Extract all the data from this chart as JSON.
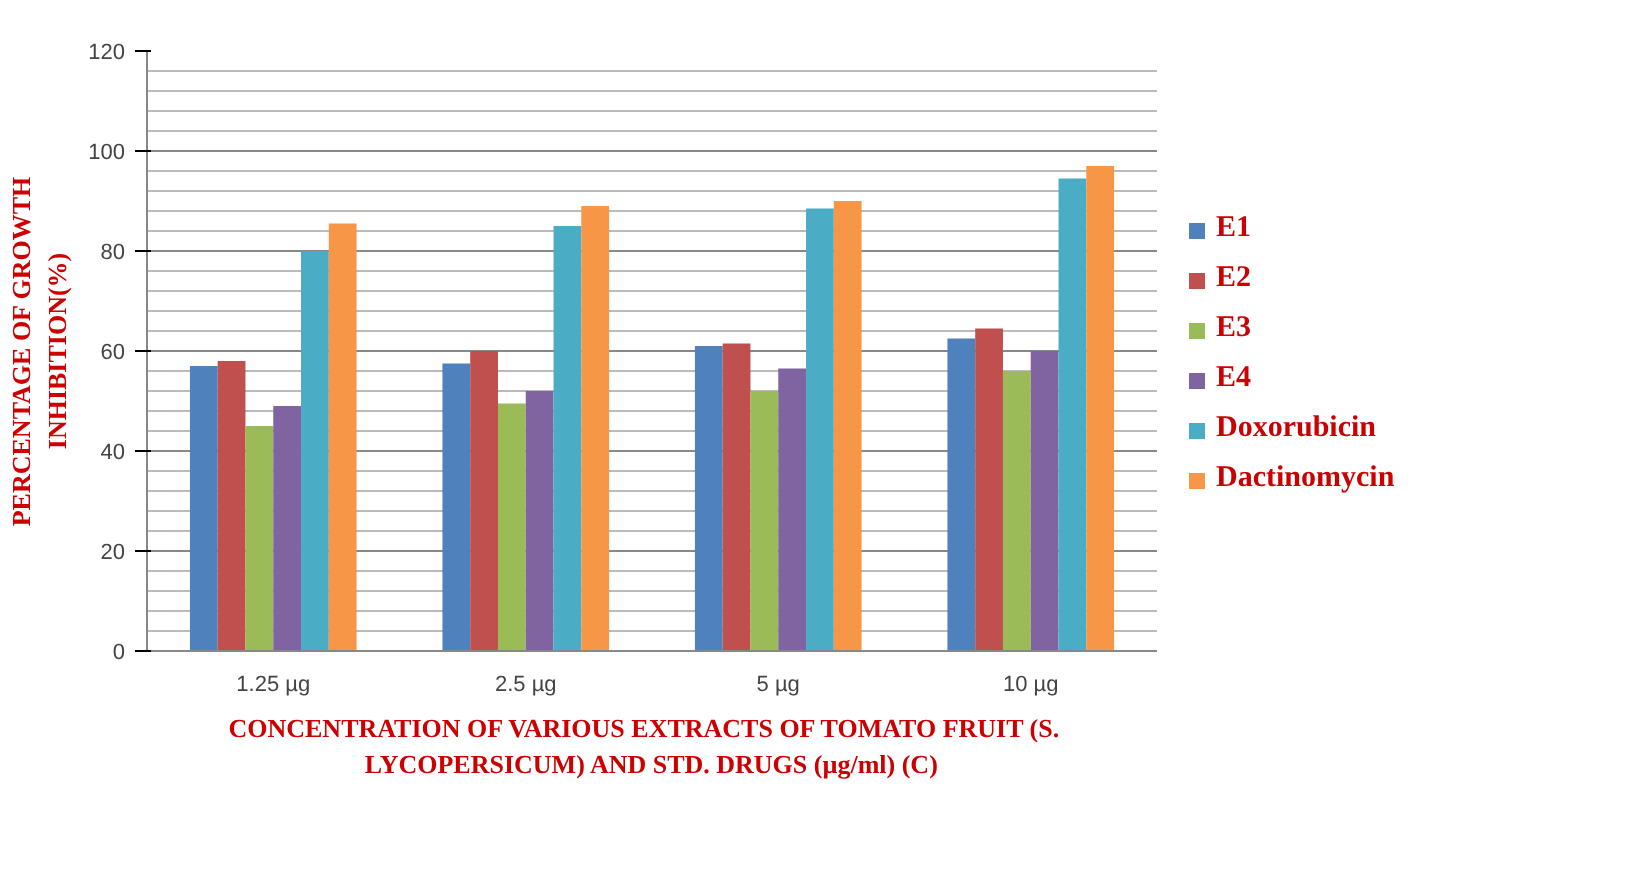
{
  "chart_data": {
    "type": "bar",
    "xlabel": "CONCENTRATION  OF  VARIOUS EXTRACTS OF TOMATO FRUIT (S.\nLYCOPERSICUM) AND STD. DRUGS (µg/ml) (C)",
    "ylabel": "PERCENTAGE OF GROWTH\nINHIBITION(%)",
    "categories": [
      "1.25 µg",
      "2.5 µg",
      "5 µg",
      "10 µg"
    ],
    "series": [
      {
        "name": "E1",
        "color": "#4f81bd",
        "values": [
          57,
          57.5,
          61,
          62.5
        ]
      },
      {
        "name": "E2",
        "color": "#c0504d",
        "values": [
          58,
          60,
          61.5,
          64.5
        ]
      },
      {
        "name": "E3",
        "color": "#9bbb59",
        "values": [
          45,
          49.5,
          52,
          56
        ]
      },
      {
        "name": "E4",
        "color": "#8064a2",
        "values": [
          49,
          52,
          56.5,
          60
        ]
      },
      {
        "name": "Doxorubicin",
        "color": "#4bacc6",
        "values": [
          80,
          85,
          88.5,
          94.5
        ]
      },
      {
        "name": "Dactinomycin",
        "color": "#f79646",
        "values": [
          85.5,
          89,
          90,
          97
        ]
      }
    ],
    "ylim": [
      0,
      120
    ],
    "yticks": [
      0,
      20,
      40,
      60,
      80,
      100,
      120
    ],
    "grid": "y",
    "legend": "right"
  }
}
